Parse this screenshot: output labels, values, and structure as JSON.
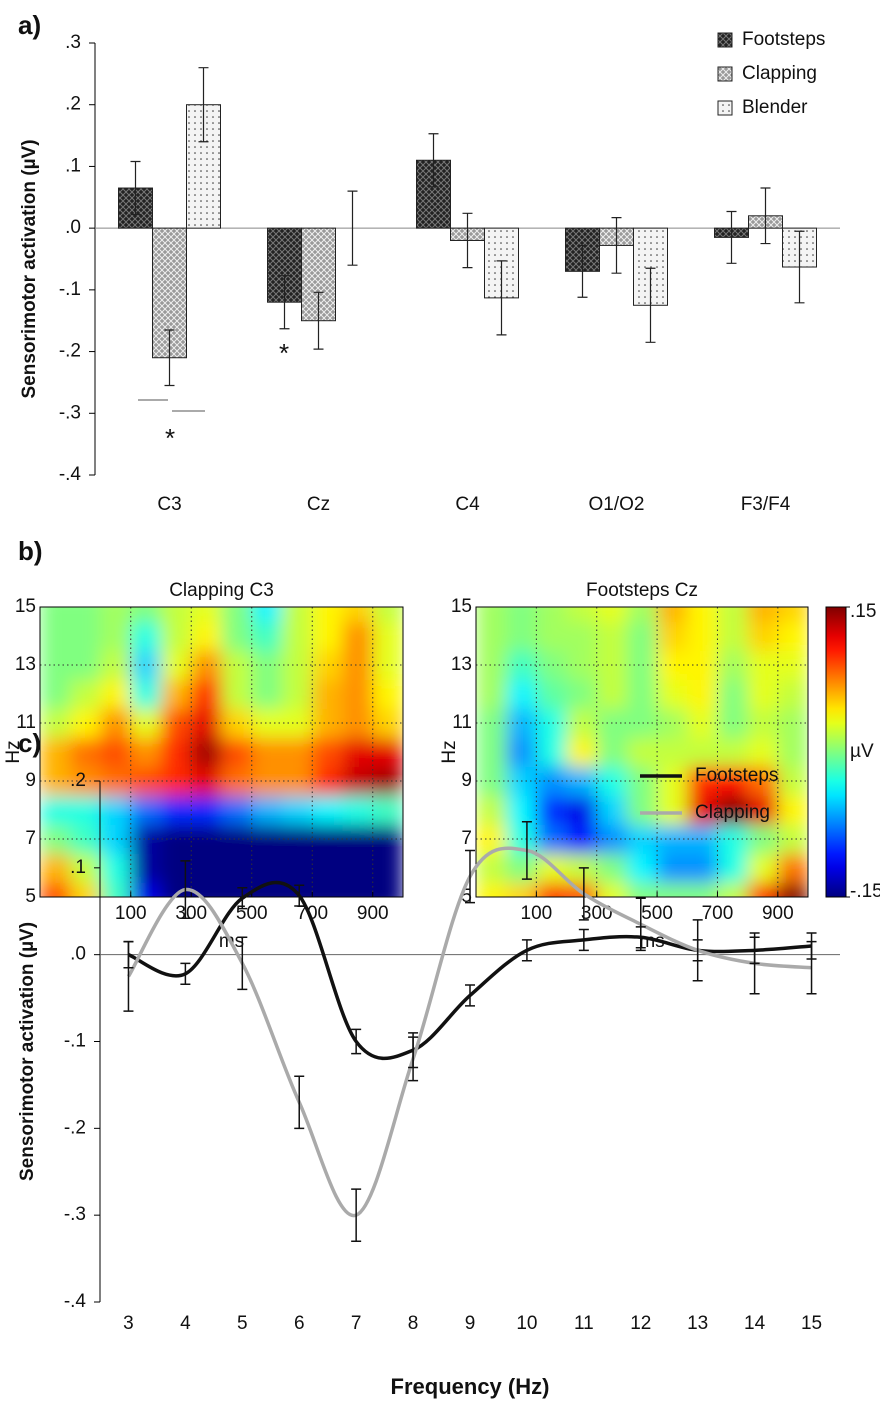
{
  "chart_data": [
    {
      "type": "bar",
      "panel_label": "a)",
      "y_label": "Sensorimotor activation (µV)",
      "categories": [
        "C3",
        "Cz",
        "C4",
        "O1/O2",
        "F3/F4"
      ],
      "series": [
        {
          "name": "Footsteps",
          "color": "#222222",
          "values": [
            0.065,
            -0.12,
            0.11,
            -0.07,
            -0.015
          ],
          "errors": [
            0.043,
            0.043,
            0.043,
            0.042,
            0.042
          ]
        },
        {
          "name": "Clapping",
          "color": "#9a9a9a",
          "values": [
            -0.21,
            -0.15,
            -0.02,
            -0.028,
            0.02
          ],
          "errors": [
            0.045,
            0.046,
            0.044,
            0.045,
            0.045
          ]
        },
        {
          "name": "Blender",
          "color": "#f4f4f4",
          "values": [
            0.2,
            0.0,
            -0.113,
            -0.125,
            -0.063
          ],
          "errors": [
            0.06,
            0.06,
            0.06,
            0.06,
            0.058
          ]
        }
      ],
      "ylim": [
        -0.4,
        0.3
      ],
      "yticks": [
        {
          "value": 0.3,
          "label": ".3"
        },
        {
          "value": 0.2,
          "label": ".2"
        },
        {
          "value": 0.1,
          "label": ".1"
        },
        {
          "value": 0,
          "label": ".0"
        },
        {
          "value": -0.1,
          "label": "-.1"
        },
        {
          "value": -0.2,
          "label": "-.2"
        },
        {
          "value": -0.3,
          "label": "-.3"
        },
        {
          "value": -0.4,
          "label": "-.4"
        }
      ],
      "annotations": [
        "*",
        "*"
      ]
    },
    {
      "type": "heatmap",
      "panel_label": "b)",
      "title": "Clapping C3",
      "x_label": "ms",
      "y_label": "Hz",
      "x": [
        -150,
        -50,
        50,
        150,
        250,
        350,
        450,
        550,
        650,
        750,
        850,
        950
      ],
      "y": [
        5,
        6,
        7,
        8,
        9,
        10,
        11,
        12,
        13,
        14,
        15
      ],
      "z": [
        [
          0.09,
          0.05,
          -0.02,
          -0.12,
          -0.15,
          -0.15,
          -0.15,
          -0.15,
          -0.15,
          -0.15,
          -0.15,
          -0.15
        ],
        [
          0.06,
          0.02,
          -0.03,
          -0.14,
          -0.15,
          -0.15,
          -0.15,
          -0.15,
          -0.15,
          -0.15,
          -0.15,
          -0.15
        ],
        [
          0.0,
          -0.02,
          -0.05,
          -0.14,
          -0.15,
          -0.15,
          -0.15,
          -0.15,
          -0.15,
          -0.15,
          -0.15,
          -0.15
        ],
        [
          -0.03,
          -0.03,
          -0.05,
          -0.08,
          -0.1,
          -0.1,
          -0.08,
          -0.06,
          -0.05,
          -0.04,
          -0.03,
          -0.02
        ],
        [
          0.06,
          0.07,
          0.08,
          0.09,
          0.1,
          0.12,
          0.08,
          0.07,
          0.07,
          0.1,
          0.13,
          0.14
        ],
        [
          0.06,
          0.08,
          0.09,
          0.07,
          0.1,
          0.14,
          0.09,
          0.07,
          0.07,
          0.09,
          0.12,
          0.12
        ],
        [
          0.02,
          0.04,
          0.07,
          0.03,
          0.09,
          0.12,
          0.05,
          0.03,
          0.03,
          0.06,
          0.07,
          0.05
        ],
        [
          0.0,
          0.02,
          0.04,
          -0.03,
          0.06,
          0.1,
          0.02,
          0.0,
          0.02,
          0.06,
          0.07,
          0.04
        ],
        [
          0.0,
          0.0,
          0.02,
          -0.05,
          0.03,
          0.07,
          0.02,
          0.0,
          0.02,
          0.05,
          0.07,
          0.03
        ],
        [
          0.0,
          0.0,
          0.01,
          -0.03,
          0.02,
          0.04,
          0.0,
          -0.02,
          0.02,
          0.04,
          0.07,
          0.03
        ],
        [
          0.0,
          0.0,
          0.01,
          0.0,
          0.02,
          0.03,
          0.0,
          -0.04,
          0.02,
          0.04,
          0.05,
          0.02
        ]
      ],
      "xlim": [
        -200,
        1000
      ],
      "ylim": [
        5,
        15
      ],
      "zlim": [
        -0.15,
        0.15
      ],
      "xticks": [
        100,
        300,
        500,
        700,
        900
      ],
      "yticks": [
        5,
        7,
        9,
        11,
        13,
        15
      ],
      "grid": true
    },
    {
      "type": "heatmap",
      "title": "Footsteps Cz",
      "x_label": "ms",
      "y_label": "Hz",
      "x": [
        -50,
        50,
        150,
        250,
        350,
        450,
        550,
        650,
        750,
        850,
        950
      ],
      "y": [
        5,
        6,
        7,
        8,
        9,
        10,
        11,
        12,
        13,
        14,
        15
      ],
      "z": [
        [
          0.04,
          0.05,
          0.1,
          0.09,
          0.03,
          0.0,
          0.0,
          0.0,
          0.02,
          0.1,
          0.15
        ],
        [
          0.02,
          0.0,
          0.03,
          0.02,
          0.0,
          -0.04,
          -0.07,
          -0.07,
          -0.03,
          0.03,
          0.08
        ],
        [
          0.04,
          -0.03,
          -0.08,
          -0.11,
          -0.07,
          -0.05,
          -0.06,
          -0.06,
          -0.03,
          0.0,
          0.02
        ],
        [
          0.02,
          -0.04,
          -0.1,
          -0.12,
          -0.05,
          0.0,
          0.03,
          0.12,
          0.15,
          0.12,
          0.04
        ],
        [
          0.0,
          -0.05,
          -0.07,
          -0.06,
          -0.03,
          0.0,
          0.03,
          0.1,
          0.11,
          0.08,
          0.02
        ],
        [
          0.0,
          -0.07,
          -0.03,
          0.04,
          0.0,
          0.02,
          0.02,
          0.02,
          0.02,
          0.03,
          0.01
        ],
        [
          0.0,
          -0.06,
          -0.03,
          0.02,
          0.0,
          0.0,
          0.01,
          0.03,
          0.0,
          0.02,
          0.01
        ],
        [
          0.01,
          -0.04,
          -0.01,
          0.0,
          0.02,
          0.0,
          0.03,
          0.04,
          0.0,
          0.03,
          0.02
        ],
        [
          0.01,
          -0.02,
          0.0,
          0.01,
          0.02,
          0.0,
          0.04,
          0.04,
          0.01,
          0.03,
          0.03
        ],
        [
          0.01,
          0.0,
          0.01,
          0.01,
          0.02,
          0.0,
          0.05,
          0.04,
          0.02,
          0.05,
          0.04
        ],
        [
          0.01,
          0.0,
          0.01,
          0.02,
          0.03,
          0.01,
          0.06,
          0.04,
          0.02,
          0.06,
          0.05
        ]
      ],
      "xlim": [
        -100,
        1000
      ],
      "ylim": [
        5,
        15
      ],
      "zlim": [
        -0.15,
        0.15
      ],
      "xticks": [
        100,
        300,
        500,
        700,
        900
      ],
      "yticks": [
        5,
        7,
        9,
        11,
        13,
        15
      ],
      "grid": true,
      "colorbar_label": "µV",
      "colorbar_ticks": [
        {
          "value": 0.15,
          "label": ".15"
        },
        {
          "value": -0.15,
          "label": "-.15"
        }
      ]
    },
    {
      "type": "line",
      "panel_label": "c)",
      "x_label": "Frequency (Hz)",
      "y_label": "Sensorimotor activation (µV)",
      "x": [
        3,
        4,
        5,
        6,
        7,
        8,
        9,
        10,
        11,
        12,
        13,
        14,
        15
      ],
      "series": [
        {
          "name": "Footsteps",
          "color": "#111111",
          "values": [
            0.0,
            -0.022,
            0.065,
            0.068,
            -0.1,
            -0.11,
            -0.047,
            0.005,
            0.017,
            0.02,
            0.005,
            0.005,
            0.01
          ],
          "errors": [
            0.015,
            0.012,
            0.012,
            0.012,
            0.014,
            0.02,
            0.012,
            0.012,
            0.012,
            0.012,
            0.012,
            0.015,
            0.015
          ]
        },
        {
          "name": "Clapping",
          "color": "#aaaaaa",
          "values": [
            -0.025,
            0.075,
            -0.01,
            -0.17,
            -0.3,
            -0.12,
            0.09,
            0.12,
            0.07,
            0.035,
            0.005,
            -0.01,
            -0.015
          ],
          "errors": [
            0.04,
            0.033,
            0.03,
            0.03,
            0.03,
            0.025,
            0.03,
            0.033,
            0.03,
            0.03,
            0.035,
            0.035,
            0.03
          ]
        }
      ],
      "xlim": [
        2.5,
        15.5
      ],
      "ylim": [
        -0.4,
        0.2
      ],
      "xticks": [
        3,
        4,
        5,
        6,
        7,
        8,
        9,
        10,
        11,
        12,
        13,
        14,
        15
      ],
      "yticks": [
        {
          "value": 0.2,
          "label": ".2"
        },
        {
          "value": 0.1,
          "label": ".1"
        },
        {
          "value": 0,
          "label": ".0"
        },
        {
          "value": -0.1,
          "label": "-.1"
        },
        {
          "value": -0.2,
          "label": "-.2"
        },
        {
          "value": -0.3,
          "label": "-.3"
        },
        {
          "value": -0.4,
          "label": "-.4"
        }
      ]
    }
  ]
}
